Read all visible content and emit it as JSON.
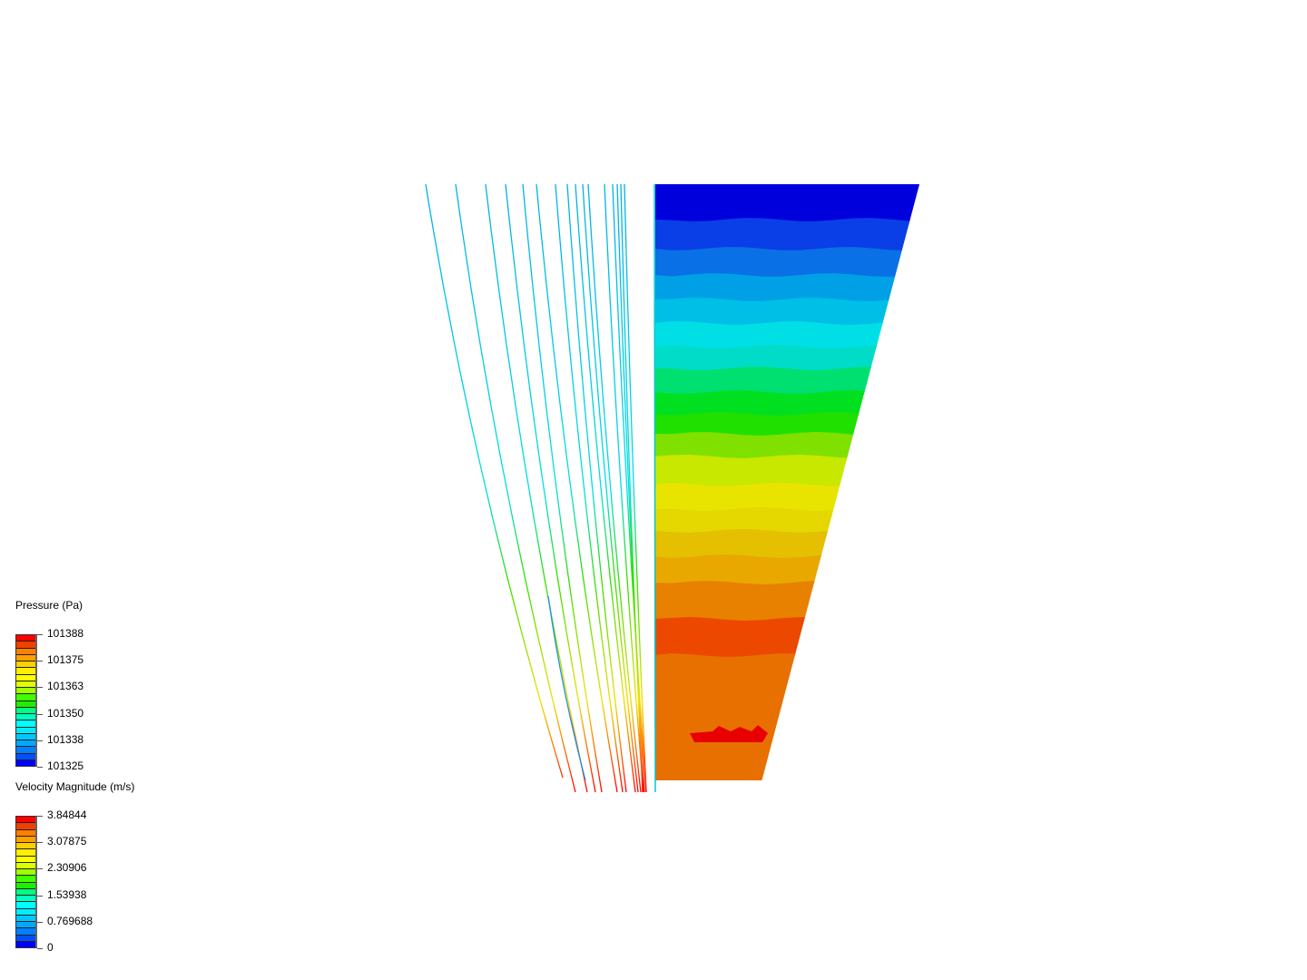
{
  "legends": [
    {
      "title": "Pressure (Pa)",
      "labels": [
        "101388",
        "101375",
        "101363",
        "101350",
        "101338",
        "101325"
      ]
    },
    {
      "title": "Velocity Magnitude (m/s)",
      "labels": [
        "3.84844",
        "3.07875",
        "2.30906",
        "1.53938",
        "0.769688",
        "0"
      ]
    }
  ],
  "colormap": [
    "#ff0000",
    "#f04000",
    "#ff8000",
    "#ffa000",
    "#ffd000",
    "#ffee00",
    "#ffff00",
    "#ddff00",
    "#a0ff00",
    "#40ff00",
    "#20ee00",
    "#00ff80",
    "#00ffc0",
    "#00ffff",
    "#00eeff",
    "#00c8ff",
    "#00a8ff",
    "#0080ff",
    "#0050ff",
    "#0000ff"
  ],
  "pressure_contour_colors": [
    "#0000dd",
    "#0a3ee6",
    "#0a70e6",
    "#00a0e6",
    "#00bfe6",
    "#00dfe6",
    "#00dcc8",
    "#00e070",
    "#00e020",
    "#20e000",
    "#80e000",
    "#c8e800",
    "#e8e400",
    "#e4d800",
    "#e4c000",
    "#e8a800",
    "#e88000",
    "#ec4800",
    "#e87000"
  ]
}
